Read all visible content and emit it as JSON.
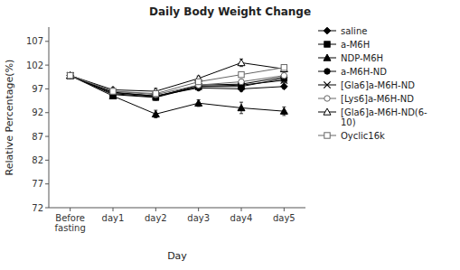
{
  "chart_data": {
    "type": "line",
    "title": "Daily Body Weight Change",
    "x_label": "Day",
    "y_label": "Relative Percentage(%)",
    "categories": [
      "Before\nfasting",
      "day1",
      "day2",
      "day3",
      "day4",
      "day5"
    ],
    "ylim": [
      72,
      110
    ],
    "yticks": [
      72,
      77,
      82,
      87,
      92,
      97,
      102,
      107
    ],
    "grid": false,
    "legend": "right",
    "series": [
      {
        "name": "saline",
        "color": "#000000",
        "marker": "diamond",
        "line_style": "solid",
        "values": [
          99.8,
          96.3,
          95.5,
          97.2,
          97.0,
          97.5
        ],
        "errors": [
          0.4,
          0.6,
          0.7,
          0.6,
          0.5,
          0.5
        ]
      },
      {
        "name": "a-M6H",
        "color": "#000000",
        "marker": "square",
        "line_style": "solid",
        "values": [
          99.8,
          95.8,
          95.2,
          97.5,
          97.5,
          99.2
        ],
        "errors": [
          0.4,
          0.5,
          0.6,
          0.5,
          0.5,
          0.5
        ]
      },
      {
        "name": "NDP-M6H",
        "color": "#000000",
        "marker": "triangle",
        "line_style": "solid",
        "values": [
          99.8,
          95.5,
          91.7,
          94.0,
          93.0,
          92.3
        ],
        "errors": [
          0.4,
          0.5,
          0.8,
          0.7,
          1.2,
          0.9
        ]
      },
      {
        "name": "a-M6H-ND",
        "color": "#000000",
        "marker": "circle",
        "line_style": "solid",
        "values": [
          99.8,
          96.0,
          95.3,
          97.8,
          98.0,
          99.5
        ],
        "errors": [
          0.4,
          0.6,
          0.6,
          0.5,
          0.5,
          0.5
        ]
      },
      {
        "name": "[Gla6]a-M6H-ND",
        "color": "#000000",
        "marker": "x",
        "line_style": "solid",
        "values": [
          99.8,
          96.2,
          95.5,
          97.5,
          97.8,
          98.8
        ],
        "errors": [
          0.4,
          0.5,
          0.6,
          0.5,
          0.5,
          0.5
        ]
      },
      {
        "name": "[Lys6]a-M6H-ND",
        "color": "#666666",
        "marker": "circle-open",
        "line_style": "solid",
        "values": [
          99.8,
          96.5,
          95.8,
          97.8,
          98.5,
          99.8
        ],
        "errors": [
          0.4,
          0.5,
          0.6,
          0.5,
          0.5,
          0.5
        ]
      },
      {
        "name": "[Gla6]a-M6H-ND(6-\n10)",
        "color": "#000000",
        "marker": "triangle-open",
        "line_style": "solid",
        "values": [
          99.8,
          96.8,
          96.5,
          99.2,
          102.5,
          101.2
        ],
        "errors": [
          0.4,
          0.5,
          0.6,
          0.5,
          0.8,
          0.6
        ]
      },
      {
        "name": "Oyclic16k",
        "color": "#666666",
        "marker": "square-open",
        "line_style": "solid",
        "values": [
          99.8,
          96.5,
          96.0,
          98.5,
          100.0,
          101.5
        ],
        "errors": [
          0.4,
          0.5,
          0.6,
          0.5,
          0.5,
          0.5
        ]
      }
    ]
  }
}
